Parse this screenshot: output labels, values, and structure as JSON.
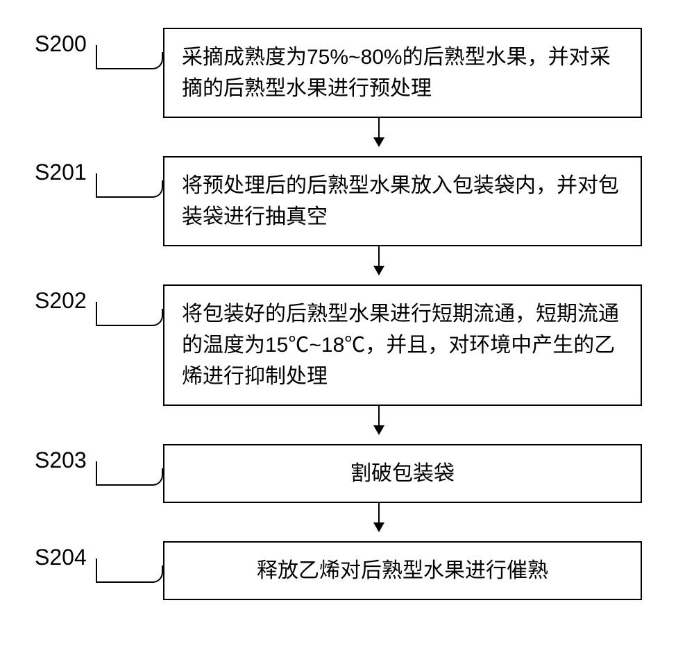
{
  "flowchart": {
    "type": "flowchart",
    "background_color": "#ffffff",
    "border_color": "#000000",
    "text_color": "#000000",
    "label_fontsize": 32,
    "box_fontsize": 30,
    "box_border_width": 2,
    "arrow_color": "#000000",
    "steps": [
      {
        "id": "S200",
        "label": "S200",
        "text": "采摘成熟度为75%~80%的后熟型水果，并对采摘的后熟型水果进行预处理",
        "lines": 2
      },
      {
        "id": "S201",
        "label": "S201",
        "text": "将预处理后的后熟型水果放入包装袋内，并对包装袋进行抽真空",
        "lines": 2
      },
      {
        "id": "S202",
        "label": "S202",
        "text": "将包装好的后熟型水果进行短期流通，短期流通的温度为15℃~18℃，并且，对环境中产生的乙烯进行抑制处理",
        "lines": 3
      },
      {
        "id": "S203",
        "label": "S203",
        "text": "割破包装袋",
        "lines": 1
      },
      {
        "id": "S204",
        "label": "S204",
        "text": "释放乙烯对后熟型水果进行催熟",
        "lines": 1
      }
    ]
  }
}
